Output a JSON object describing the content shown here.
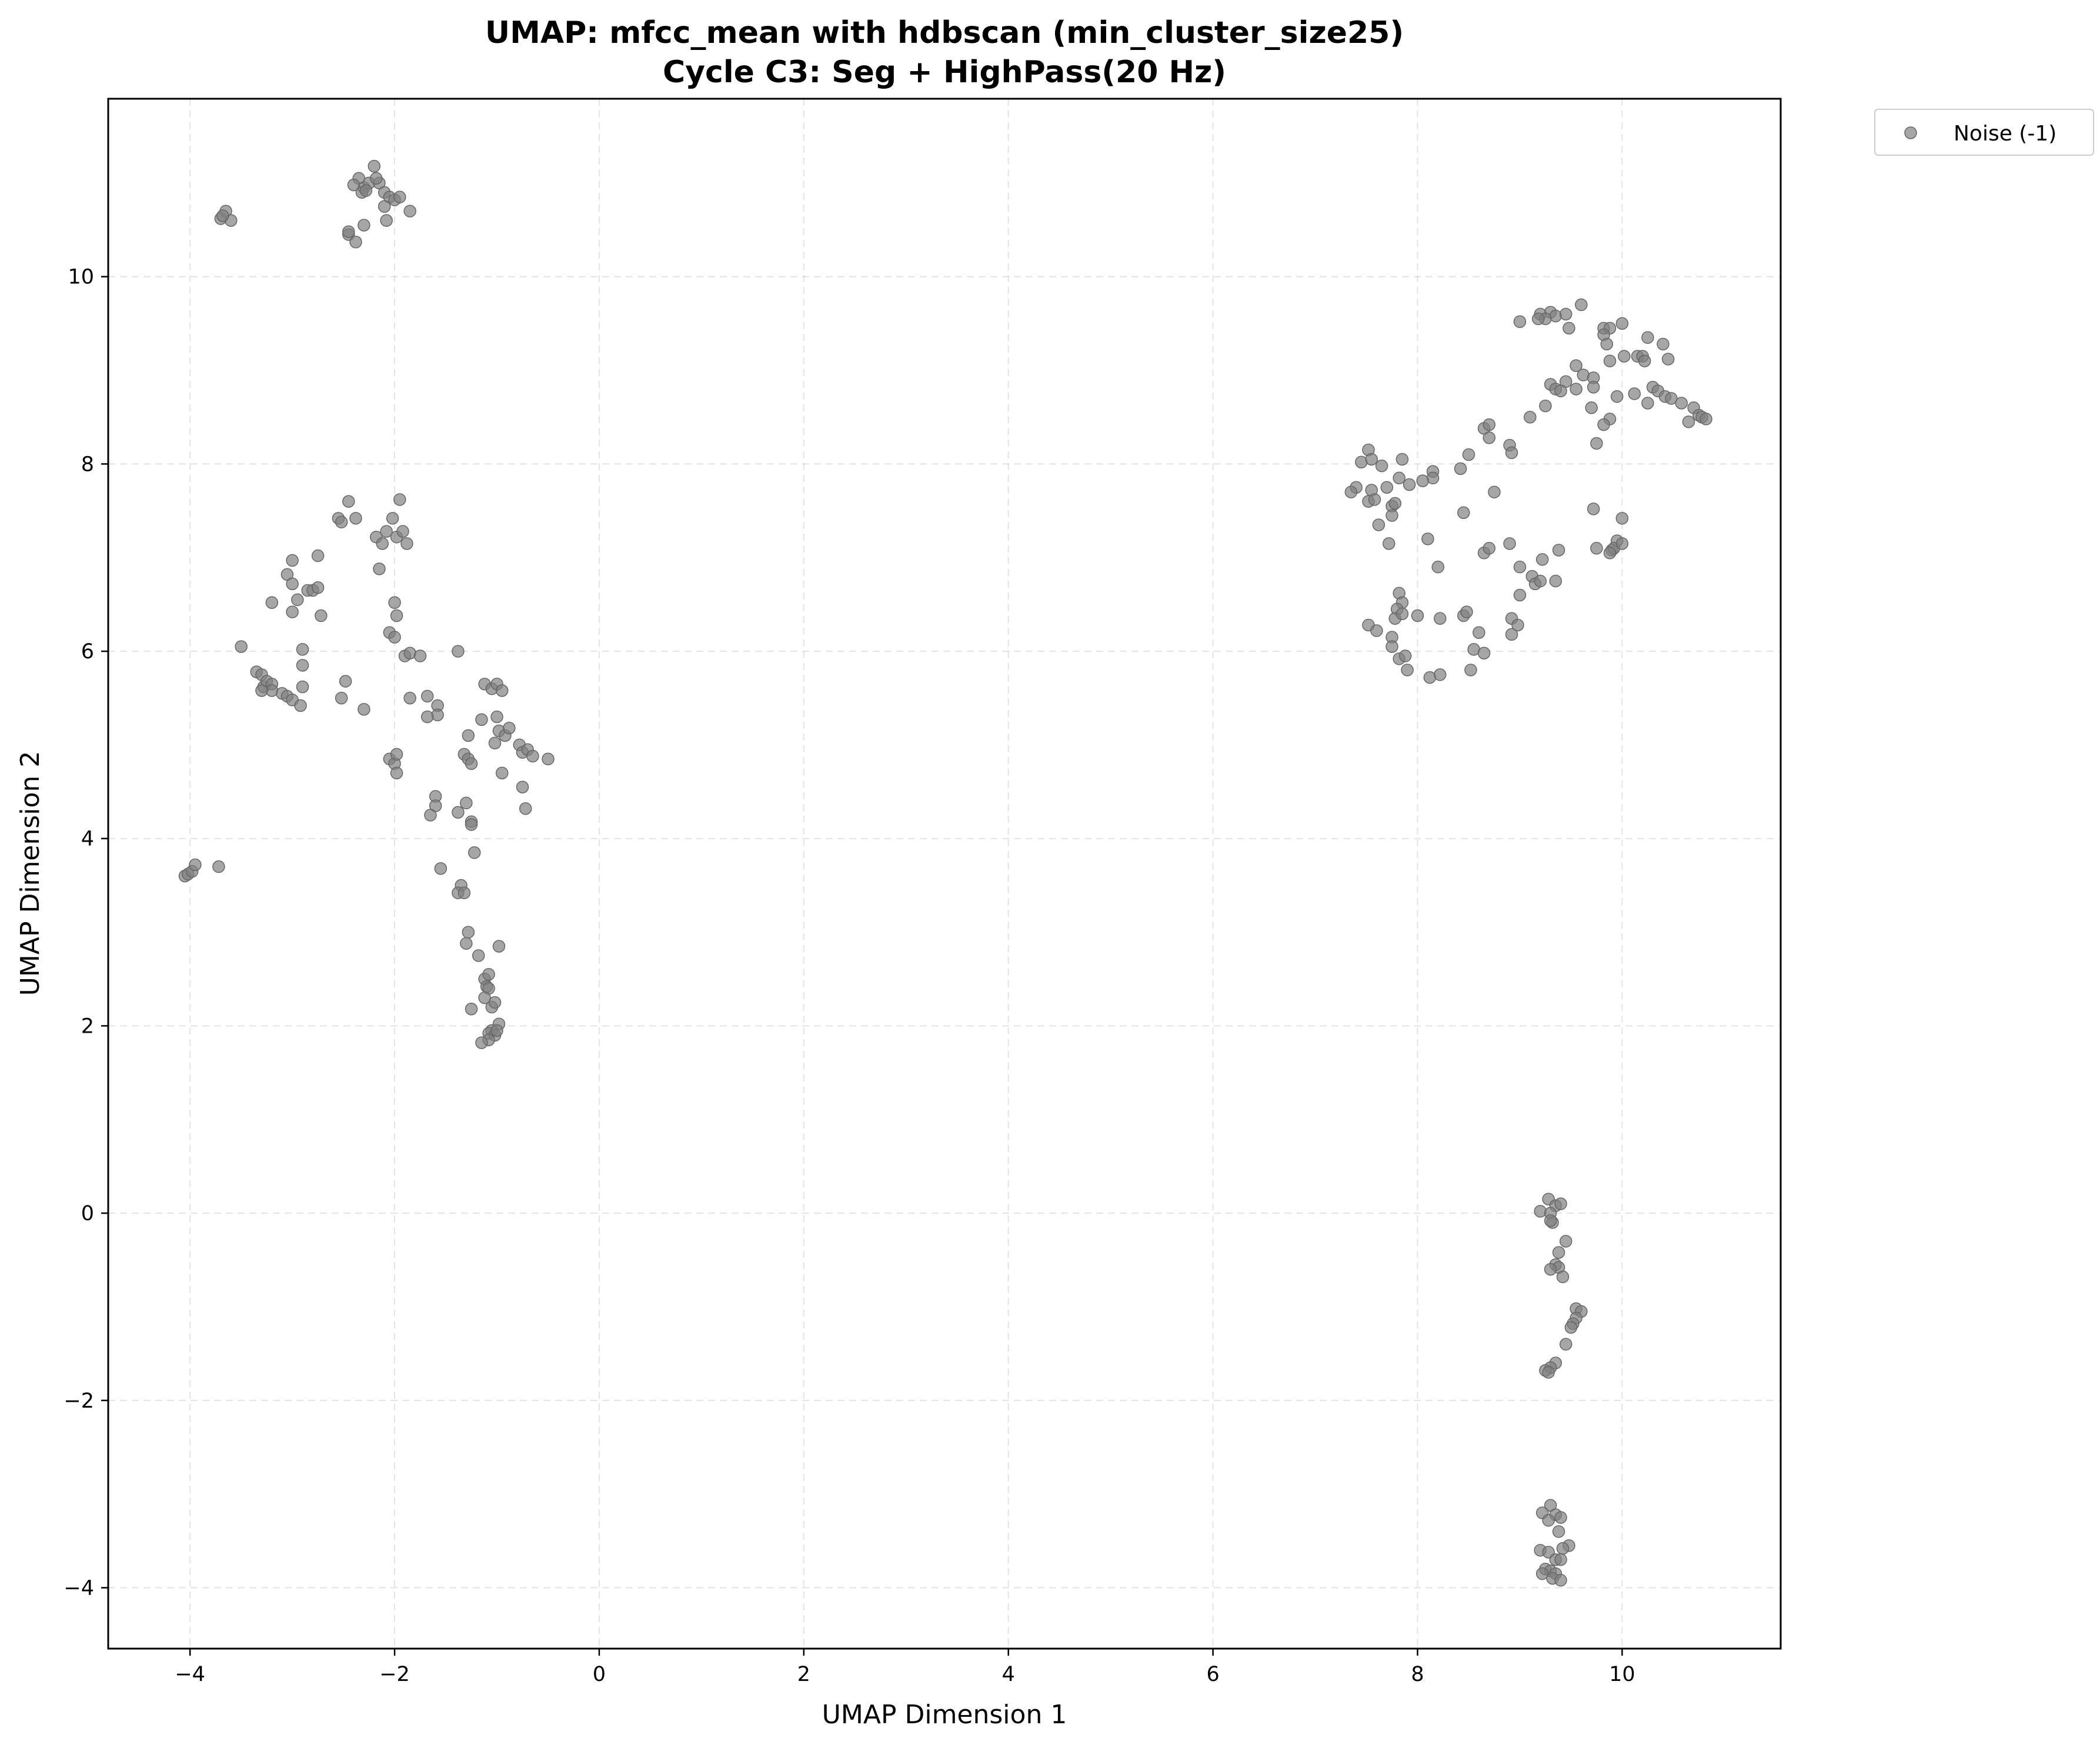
{
  "chart_data": {
    "type": "scatter",
    "title": "UMAP: mfcc_mean with hdbscan (min_cluster_size25)",
    "subtitle": "Cycle C3: Seg + HighPass(20 Hz)",
    "xlabel": "UMAP Dimension 1",
    "ylabel": "UMAP Dimension 2",
    "xlim": [
      -4.8,
      11.55
    ],
    "ylim": [
      -4.65,
      11.9
    ],
    "xticks": [
      -4,
      -2,
      0,
      2,
      4,
      6,
      8,
      10
    ],
    "yticks": [
      -4,
      -2,
      0,
      2,
      4,
      6,
      8,
      10
    ],
    "xtick_labels": [
      "−4",
      "−2",
      "0",
      "2",
      "4",
      "6",
      "8",
      "10"
    ],
    "ytick_labels": [
      "−4",
      "−2",
      "0",
      "2",
      "4",
      "6",
      "8",
      "10"
    ],
    "grid": true,
    "legend_position": "outside-top-right",
    "series": [
      {
        "name": "Noise (-1)",
        "color": "#808080",
        "points": [
          [
            -3.7,
            10.62
          ],
          [
            -3.65,
            10.7
          ],
          [
            -3.6,
            10.6
          ],
          [
            -3.68,
            10.65
          ],
          [
            -2.35,
            11.05
          ],
          [
            -2.3,
            10.95
          ],
          [
            -2.25,
            11.0
          ],
          [
            -2.2,
            11.18
          ],
          [
            -2.15,
            11.0
          ],
          [
            -2.1,
            10.9
          ],
          [
            -2.05,
            10.85
          ],
          [
            -2.0,
            10.82
          ],
          [
            -1.95,
            10.85
          ],
          [
            -1.85,
            10.7
          ],
          [
            -2.4,
            10.98
          ],
          [
            -2.32,
            10.9
          ],
          [
            -2.1,
            10.75
          ],
          [
            -2.08,
            10.6
          ],
          [
            -2.45,
            10.45
          ],
          [
            -2.3,
            10.55
          ],
          [
            -2.38,
            10.37
          ],
          [
            -2.45,
            10.48
          ],
          [
            -2.28,
            10.92
          ],
          [
            -2.18,
            11.05
          ],
          [
            -2.55,
            7.42
          ],
          [
            -2.45,
            7.6
          ],
          [
            -2.38,
            7.42
          ],
          [
            -2.52,
            7.38
          ],
          [
            -2.18,
            7.22
          ],
          [
            -2.12,
            7.15
          ],
          [
            -2.08,
            7.28
          ],
          [
            -2.02,
            7.42
          ],
          [
            -1.95,
            7.62
          ],
          [
            -1.98,
            7.22
          ],
          [
            -1.92,
            7.28
          ],
          [
            -1.88,
            7.15
          ],
          [
            -2.15,
            6.88
          ],
          [
            -3.0,
            6.97
          ],
          [
            -3.05,
            6.82
          ],
          [
            -3.0,
            6.72
          ],
          [
            -2.95,
            6.55
          ],
          [
            -2.85,
            6.65
          ],
          [
            -2.8,
            6.65
          ],
          [
            -2.75,
            7.02
          ],
          [
            -2.75,
            6.68
          ],
          [
            -3.2,
            6.52
          ],
          [
            -3.0,
            6.42
          ],
          [
            -2.72,
            6.38
          ],
          [
            -2.0,
            6.52
          ],
          [
            -1.98,
            6.38
          ],
          [
            -2.05,
            6.2
          ],
          [
            -2.0,
            6.15
          ],
          [
            -1.9,
            5.95
          ],
          [
            -1.85,
            5.98
          ],
          [
            -1.75,
            5.95
          ],
          [
            -1.38,
            6.0
          ],
          [
            -3.5,
            6.05
          ],
          [
            -3.35,
            5.78
          ],
          [
            -3.3,
            5.75
          ],
          [
            -3.28,
            5.62
          ],
          [
            -3.25,
            5.68
          ],
          [
            -3.2,
            5.65
          ],
          [
            -3.2,
            5.58
          ],
          [
            -3.1,
            5.55
          ],
          [
            -3.05,
            5.52
          ],
          [
            -3.0,
            5.48
          ],
          [
            -2.92,
            5.42
          ],
          [
            -2.9,
            6.02
          ],
          [
            -2.9,
            5.85
          ],
          [
            -2.9,
            5.62
          ],
          [
            -3.3,
            5.58
          ],
          [
            -2.48,
            5.68
          ],
          [
            -2.52,
            5.5
          ],
          [
            -2.3,
            5.38
          ],
          [
            -1.85,
            5.5
          ],
          [
            -1.68,
            5.52
          ],
          [
            -1.58,
            5.42
          ],
          [
            -1.58,
            5.32
          ],
          [
            -1.68,
            5.3
          ],
          [
            -1.12,
            5.65
          ],
          [
            -1.05,
            5.6
          ],
          [
            -1.0,
            5.65
          ],
          [
            -0.95,
            5.58
          ],
          [
            -1.15,
            5.27
          ],
          [
            -1.0,
            5.3
          ],
          [
            -0.98,
            5.15
          ],
          [
            -0.92,
            5.1
          ],
          [
            -0.88,
            5.18
          ],
          [
            -0.78,
            5.0
          ],
          [
            -0.75,
            4.92
          ],
          [
            -0.7,
            4.95
          ],
          [
            -0.65,
            4.88
          ],
          [
            -0.5,
            4.85
          ],
          [
            -1.02,
            5.02
          ],
          [
            -1.28,
            5.1
          ],
          [
            -2.05,
            4.85
          ],
          [
            -2.0,
            4.8
          ],
          [
            -1.98,
            4.9
          ],
          [
            -1.98,
            4.7
          ],
          [
            -1.32,
            4.9
          ],
          [
            -1.28,
            4.85
          ],
          [
            -1.25,
            4.8
          ],
          [
            -0.95,
            4.7
          ],
          [
            -0.75,
            4.55
          ],
          [
            -1.6,
            4.45
          ],
          [
            -1.6,
            4.35
          ],
          [
            -1.65,
            4.25
          ],
          [
            -1.38,
            4.28
          ],
          [
            -1.3,
            4.38
          ],
          [
            -1.25,
            4.18
          ],
          [
            -1.25,
            4.15
          ],
          [
            -1.22,
            3.85
          ],
          [
            -0.72,
            4.32
          ],
          [
            -1.55,
            3.68
          ],
          [
            -1.35,
            3.5
          ],
          [
            -1.38,
            3.42
          ],
          [
            -1.32,
            3.42
          ],
          [
            -4.05,
            3.6
          ],
          [
            -4.02,
            3.62
          ],
          [
            -3.98,
            3.65
          ],
          [
            -3.95,
            3.72
          ],
          [
            -3.72,
            3.7
          ],
          [
            -1.28,
            3.0
          ],
          [
            -1.3,
            2.88
          ],
          [
            -1.18,
            2.75
          ],
          [
            -0.98,
            2.85
          ],
          [
            -1.12,
            2.5
          ],
          [
            -1.08,
            2.55
          ],
          [
            -1.1,
            2.42
          ],
          [
            -1.08,
            2.4
          ],
          [
            -1.12,
            2.3
          ],
          [
            -1.05,
            2.2
          ],
          [
            -1.02,
            2.25
          ],
          [
            -1.25,
            2.18
          ],
          [
            -0.98,
            2.02
          ],
          [
            -1.05,
            1.95
          ],
          [
            -1.08,
            1.92
          ],
          [
            -1.02,
            1.9
          ],
          [
            -1.0,
            1.95
          ],
          [
            -1.08,
            1.85
          ],
          [
            -1.15,
            1.82
          ],
          [
            9.3,
            9.62
          ],
          [
            9.35,
            9.58
          ],
          [
            9.2,
            9.6
          ],
          [
            9.25,
            9.55
          ],
          [
            9.0,
            9.52
          ],
          [
            9.18,
            9.55
          ],
          [
            9.45,
            9.6
          ],
          [
            9.6,
            9.7
          ],
          [
            9.48,
            9.45
          ],
          [
            9.82,
            9.45
          ],
          [
            9.88,
            9.45
          ],
          [
            10.0,
            9.5
          ],
          [
            9.82,
            9.38
          ],
          [
            9.85,
            9.28
          ],
          [
            10.15,
            9.15
          ],
          [
            10.2,
            9.15
          ],
          [
            10.25,
            9.35
          ],
          [
            10.4,
            9.28
          ],
          [
            10.45,
            9.12
          ],
          [
            10.02,
            9.15
          ],
          [
            9.88,
            9.1
          ],
          [
            10.22,
            9.1
          ],
          [
            9.55,
            9.05
          ],
          [
            9.62,
            8.95
          ],
          [
            9.72,
            8.92
          ],
          [
            9.45,
            8.88
          ],
          [
            9.3,
            8.85
          ],
          [
            9.35,
            8.8
          ],
          [
            9.4,
            8.78
          ],
          [
            9.55,
            8.8
          ],
          [
            9.72,
            8.82
          ],
          [
            9.95,
            8.72
          ],
          [
            10.12,
            8.75
          ],
          [
            10.25,
            8.65
          ],
          [
            10.3,
            8.82
          ],
          [
            10.35,
            8.78
          ],
          [
            10.42,
            8.72
          ],
          [
            10.48,
            8.7
          ],
          [
            10.58,
            8.65
          ],
          [
            10.7,
            8.6
          ],
          [
            10.75,
            8.52
          ],
          [
            10.78,
            8.5
          ],
          [
            10.82,
            8.48
          ],
          [
            10.65,
            8.45
          ],
          [
            9.25,
            8.62
          ],
          [
            9.1,
            8.5
          ],
          [
            9.7,
            8.6
          ],
          [
            9.88,
            8.48
          ],
          [
            9.82,
            8.42
          ],
          [
            9.75,
            8.22
          ],
          [
            8.65,
            8.38
          ],
          [
            8.7,
            8.42
          ],
          [
            8.7,
            8.28
          ],
          [
            8.9,
            8.2
          ],
          [
            8.92,
            8.12
          ],
          [
            8.5,
            8.1
          ],
          [
            8.42,
            7.95
          ],
          [
            8.75,
            7.7
          ],
          [
            8.45,
            7.48
          ],
          [
            7.45,
            8.02
          ],
          [
            7.52,
            8.15
          ],
          [
            7.55,
            8.05
          ],
          [
            7.65,
            7.98
          ],
          [
            7.85,
            8.05
          ],
          [
            8.15,
            7.92
          ],
          [
            8.15,
            7.85
          ],
          [
            8.05,
            7.82
          ],
          [
            7.82,
            7.85
          ],
          [
            7.92,
            7.78
          ],
          [
            7.7,
            7.75
          ],
          [
            7.55,
            7.72
          ],
          [
            7.52,
            7.6
          ],
          [
            7.58,
            7.62
          ],
          [
            7.4,
            7.75
          ],
          [
            7.35,
            7.7
          ],
          [
            7.75,
            7.55
          ],
          [
            7.78,
            7.58
          ],
          [
            7.75,
            7.45
          ],
          [
            7.62,
            7.35
          ],
          [
            7.72,
            7.15
          ],
          [
            8.1,
            7.2
          ],
          [
            8.65,
            7.05
          ],
          [
            8.7,
            7.1
          ],
          [
            8.9,
            7.15
          ],
          [
            9.0,
            6.9
          ],
          [
            9.12,
            6.8
          ],
          [
            9.15,
            6.72
          ],
          [
            9.2,
            6.75
          ],
          [
            9.22,
            6.98
          ],
          [
            9.38,
            7.08
          ],
          [
            9.35,
            6.75
          ],
          [
            9.75,
            7.1
          ],
          [
            9.72,
            7.52
          ],
          [
            9.9,
            7.08
          ],
          [
            9.95,
            7.18
          ],
          [
            9.92,
            7.1
          ],
          [
            9.88,
            7.05
          ],
          [
            10.0,
            7.15
          ],
          [
            10.0,
            7.42
          ],
          [
            8.2,
            6.9
          ],
          [
            9.0,
            6.6
          ],
          [
            7.82,
            6.62
          ],
          [
            7.85,
            6.52
          ],
          [
            7.8,
            6.45
          ],
          [
            7.78,
            6.35
          ],
          [
            7.85,
            6.4
          ],
          [
            8.0,
            6.38
          ],
          [
            8.22,
            6.35
          ],
          [
            8.45,
            6.38
          ],
          [
            8.48,
            6.42
          ],
          [
            8.6,
            6.2
          ],
          [
            8.92,
            6.35
          ],
          [
            8.98,
            6.28
          ],
          [
            8.92,
            6.18
          ],
          [
            7.52,
            6.28
          ],
          [
            7.6,
            6.22
          ],
          [
            7.75,
            6.15
          ],
          [
            7.75,
            6.05
          ],
          [
            7.82,
            5.92
          ],
          [
            7.88,
            5.95
          ],
          [
            7.9,
            5.8
          ],
          [
            8.12,
            5.72
          ],
          [
            8.22,
            5.75
          ],
          [
            8.52,
            5.8
          ],
          [
            8.55,
            6.02
          ],
          [
            8.65,
            5.98
          ],
          [
            9.28,
            0.15
          ],
          [
            9.35,
            0.08
          ],
          [
            9.4,
            0.1
          ],
          [
            9.2,
            0.02
          ],
          [
            9.3,
            0.0
          ],
          [
            9.32,
            -0.1
          ],
          [
            9.3,
            -0.08
          ],
          [
            9.45,
            -0.3
          ],
          [
            9.38,
            -0.42
          ],
          [
            9.35,
            -0.55
          ],
          [
            9.38,
            -0.58
          ],
          [
            9.3,
            -0.6
          ],
          [
            9.42,
            -0.68
          ],
          [
            9.55,
            -1.02
          ],
          [
            9.6,
            -1.05
          ],
          [
            9.55,
            -1.12
          ],
          [
            9.52,
            -1.18
          ],
          [
            9.5,
            -1.22
          ],
          [
            9.45,
            -1.4
          ],
          [
            9.35,
            -1.6
          ],
          [
            9.3,
            -1.65
          ],
          [
            9.25,
            -1.68
          ],
          [
            9.28,
            -1.7
          ],
          [
            9.3,
            -3.12
          ],
          [
            9.22,
            -3.2
          ],
          [
            9.35,
            -3.22
          ],
          [
            9.28,
            -3.28
          ],
          [
            9.4,
            -3.25
          ],
          [
            9.38,
            -3.4
          ],
          [
            9.48,
            -3.55
          ],
          [
            9.42,
            -3.58
          ],
          [
            9.2,
            -3.6
          ],
          [
            9.28,
            -3.62
          ],
          [
            9.35,
            -3.7
          ],
          [
            9.4,
            -3.7
          ],
          [
            9.25,
            -3.8
          ],
          [
            9.3,
            -3.82
          ],
          [
            9.22,
            -3.85
          ],
          [
            9.35,
            -3.85
          ],
          [
            9.32,
            -3.9
          ],
          [
            9.4,
            -3.92
          ]
        ]
      }
    ]
  }
}
